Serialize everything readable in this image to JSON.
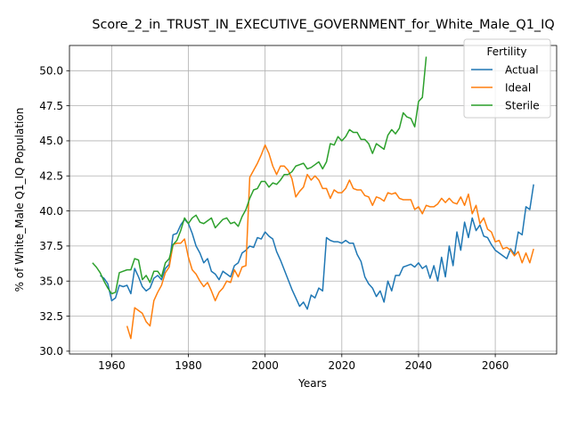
{
  "chart_data": {
    "type": "line",
    "title": "Score_2_in_TRUST_IN_EXECUTIVE_GOVERNMENT_for_White_Male_Q1_IQ",
    "xlabel": "Years",
    "ylabel": "% of White_Male Q1_IQ Population",
    "xlim": [
      1949,
      2076
    ],
    "ylim": [
      29.8,
      51.8
    ],
    "xticks": [
      1960,
      1980,
      2000,
      2020,
      2040,
      2060
    ],
    "yticks": [
      30.0,
      32.5,
      35.0,
      37.5,
      40.0,
      42.5,
      45.0,
      47.5,
      50.0
    ],
    "xtick_labels": [
      "1960",
      "1980",
      "2000",
      "2020",
      "2040",
      "2060"
    ],
    "ytick_labels": [
      "30.0",
      "32.5",
      "35.0",
      "37.5",
      "40.0",
      "42.5",
      "45.0",
      "47.5",
      "50.0"
    ],
    "grid": true,
    "legend": {
      "title": "Fertility",
      "placement": "top-right"
    },
    "series": [
      {
        "name": "Actual",
        "color": "#1f77b4",
        "points": [
          [
            1957,
            35.4
          ],
          [
            1958,
            35.2
          ],
          [
            1959,
            34.8
          ],
          [
            1960,
            33.6
          ],
          [
            1961,
            33.8
          ],
          [
            1962,
            34.7
          ],
          [
            1963,
            34.6
          ],
          [
            1964,
            34.7
          ],
          [
            1965,
            34.1
          ],
          [
            1966,
            35.9
          ],
          [
            1967,
            35.3
          ],
          [
            1968,
            34.6
          ],
          [
            1969,
            34.3
          ],
          [
            1970,
            34.5
          ],
          [
            1971,
            35.2
          ],
          [
            1972,
            35.4
          ],
          [
            1973,
            35.1
          ],
          [
            1974,
            35.9
          ],
          [
            1975,
            36.2
          ],
          [
            1976,
            38.3
          ],
          [
            1977,
            38.4
          ],
          [
            1978,
            39.0
          ],
          [
            1979,
            39.4
          ],
          [
            1980,
            39.1
          ],
          [
            1981,
            38.4
          ],
          [
            1982,
            37.5
          ],
          [
            1983,
            37.0
          ],
          [
            1984,
            36.3
          ],
          [
            1985,
            36.6
          ],
          [
            1986,
            35.7
          ],
          [
            1987,
            35.5
          ],
          [
            1988,
            35.1
          ],
          [
            1989,
            35.7
          ],
          [
            1990,
            35.5
          ],
          [
            1991,
            35.3
          ],
          [
            1992,
            36.1
          ],
          [
            1993,
            36.3
          ],
          [
            1994,
            37.0
          ],
          [
            1995,
            37.2
          ],
          [
            1996,
            37.5
          ],
          [
            1997,
            37.4
          ],
          [
            1998,
            38.1
          ],
          [
            1999,
            38.0
          ],
          [
            2000,
            38.5
          ],
          [
            2001,
            38.2
          ],
          [
            2002,
            38.0
          ],
          [
            2003,
            37.1
          ],
          [
            2004,
            36.5
          ],
          [
            2005,
            35.8
          ],
          [
            2006,
            35.1
          ],
          [
            2007,
            34.4
          ],
          [
            2008,
            33.8
          ],
          [
            2009,
            33.2
          ],
          [
            2010,
            33.5
          ],
          [
            2011,
            33.0
          ],
          [
            2012,
            34.0
          ],
          [
            2013,
            33.8
          ],
          [
            2014,
            34.5
          ],
          [
            2015,
            34.3
          ],
          [
            2016,
            38.1
          ],
          [
            2017,
            37.9
          ],
          [
            2018,
            37.8
          ],
          [
            2019,
            37.8
          ],
          [
            2020,
            37.7
          ],
          [
            2021,
            37.9
          ],
          [
            2022,
            37.7
          ],
          [
            2023,
            37.7
          ],
          [
            2024,
            36.9
          ],
          [
            2025,
            36.4
          ],
          [
            2026,
            35.3
          ],
          [
            2027,
            34.8
          ],
          [
            2028,
            34.5
          ],
          [
            2029,
            33.9
          ],
          [
            2030,
            34.3
          ],
          [
            2031,
            33.5
          ],
          [
            2032,
            35.0
          ],
          [
            2033,
            34.3
          ],
          [
            2034,
            35.4
          ],
          [
            2035,
            35.4
          ],
          [
            2036,
            36.0
          ],
          [
            2037,
            36.1
          ],
          [
            2038,
            36.2
          ],
          [
            2039,
            36.0
          ],
          [
            2040,
            36.3
          ],
          [
            2041,
            35.9
          ],
          [
            2042,
            36.1
          ],
          [
            2043,
            35.2
          ],
          [
            2044,
            36.1
          ],
          [
            2045,
            35.0
          ],
          [
            2046,
            36.7
          ],
          [
            2047,
            35.3
          ],
          [
            2048,
            37.5
          ],
          [
            2049,
            36.1
          ],
          [
            2050,
            38.5
          ],
          [
            2051,
            37.2
          ],
          [
            2052,
            39.2
          ],
          [
            2053,
            38.1
          ],
          [
            2054,
            39.5
          ],
          [
            2055,
            38.6
          ],
          [
            2056,
            39.0
          ],
          [
            2057,
            38.2
          ],
          [
            2058,
            38.1
          ],
          [
            2059,
            37.6
          ],
          [
            2060,
            37.2
          ],
          [
            2061,
            37.0
          ],
          [
            2062,
            36.8
          ],
          [
            2063,
            36.6
          ],
          [
            2064,
            37.3
          ],
          [
            2065,
            36.9
          ],
          [
            2066,
            38.5
          ],
          [
            2067,
            38.3
          ],
          [
            2068,
            40.3
          ],
          [
            2069,
            40.1
          ],
          [
            2070,
            41.9
          ]
        ]
      },
      {
        "name": "Ideal",
        "color": "#ff7f0e",
        "points": [
          [
            1964,
            31.8
          ],
          [
            1965,
            30.9
          ],
          [
            1966,
            33.1
          ],
          [
            1967,
            32.9
          ],
          [
            1968,
            32.7
          ],
          [
            1969,
            32.1
          ],
          [
            1970,
            31.8
          ],
          [
            1971,
            33.6
          ],
          [
            1972,
            34.2
          ],
          [
            1973,
            34.7
          ],
          [
            1974,
            35.6
          ],
          [
            1975,
            36.0
          ],
          [
            1976,
            37.6
          ],
          [
            1977,
            37.7
          ],
          [
            1978,
            37.7
          ],
          [
            1979,
            38.0
          ],
          [
            1980,
            36.7
          ],
          [
            1981,
            35.8
          ],
          [
            1982,
            35.5
          ],
          [
            1983,
            35.0
          ],
          [
            1984,
            34.6
          ],
          [
            1985,
            34.9
          ],
          [
            1986,
            34.3
          ],
          [
            1987,
            33.6
          ],
          [
            1988,
            34.2
          ],
          [
            1989,
            34.5
          ],
          [
            1990,
            35.0
          ],
          [
            1991,
            34.9
          ],
          [
            1992,
            35.8
          ],
          [
            1993,
            35.3
          ],
          [
            1994,
            36.0
          ],
          [
            1995,
            36.1
          ],
          [
            1996,
            42.4
          ],
          [
            1997,
            42.9
          ],
          [
            1998,
            43.4
          ],
          [
            1999,
            44.0
          ],
          [
            2000,
            44.7
          ],
          [
            2001,
            44.1
          ],
          [
            2002,
            43.2
          ],
          [
            2003,
            42.6
          ],
          [
            2004,
            43.2
          ],
          [
            2005,
            43.2
          ],
          [
            2006,
            42.9
          ],
          [
            2007,
            42.3
          ],
          [
            2008,
            41.0
          ],
          [
            2009,
            41.4
          ],
          [
            2010,
            41.7
          ],
          [
            2011,
            42.6
          ],
          [
            2012,
            42.2
          ],
          [
            2013,
            42.5
          ],
          [
            2014,
            42.2
          ],
          [
            2015,
            41.6
          ],
          [
            2016,
            41.6
          ],
          [
            2017,
            40.9
          ],
          [
            2018,
            41.5
          ],
          [
            2019,
            41.3
          ],
          [
            2020,
            41.3
          ],
          [
            2021,
            41.6
          ],
          [
            2022,
            42.2
          ],
          [
            2023,
            41.6
          ],
          [
            2024,
            41.5
          ],
          [
            2025,
            41.5
          ],
          [
            2026,
            41.1
          ],
          [
            2027,
            41.0
          ],
          [
            2028,
            40.4
          ],
          [
            2029,
            41.0
          ],
          [
            2030,
            40.9
          ],
          [
            2031,
            40.7
          ],
          [
            2032,
            41.3
          ],
          [
            2033,
            41.2
          ],
          [
            2034,
            41.3
          ],
          [
            2035,
            40.9
          ],
          [
            2036,
            40.8
          ],
          [
            2037,
            40.8
          ],
          [
            2038,
            40.8
          ],
          [
            2039,
            40.1
          ],
          [
            2040,
            40.3
          ],
          [
            2041,
            39.8
          ],
          [
            2042,
            40.4
          ],
          [
            2043,
            40.3
          ],
          [
            2044,
            40.3
          ],
          [
            2045,
            40.5
          ],
          [
            2046,
            40.9
          ],
          [
            2047,
            40.6
          ],
          [
            2048,
            40.9
          ],
          [
            2049,
            40.6
          ],
          [
            2050,
            40.5
          ],
          [
            2051,
            41.0
          ],
          [
            2052,
            40.4
          ],
          [
            2053,
            41.2
          ],
          [
            2054,
            39.8
          ],
          [
            2055,
            40.4
          ],
          [
            2056,
            39.1
          ],
          [
            2057,
            39.5
          ],
          [
            2058,
            38.7
          ],
          [
            2059,
            38.5
          ],
          [
            2060,
            37.8
          ],
          [
            2061,
            37.9
          ],
          [
            2062,
            37.3
          ],
          [
            2063,
            37.4
          ],
          [
            2064,
            37.2
          ],
          [
            2065,
            36.8
          ],
          [
            2066,
            37.1
          ],
          [
            2067,
            36.3
          ],
          [
            2068,
            37.0
          ],
          [
            2069,
            36.3
          ],
          [
            2070,
            37.3
          ]
        ]
      },
      {
        "name": "Sterile",
        "color": "#2ca02c",
        "points": [
          [
            1955,
            36.3
          ],
          [
            1956,
            36.0
          ],
          [
            1957,
            35.6
          ],
          [
            1958,
            35.0
          ],
          [
            1959,
            34.5
          ],
          [
            1960,
            34.1
          ],
          [
            1961,
            34.2
          ],
          [
            1962,
            35.6
          ],
          [
            1963,
            35.7
          ],
          [
            1964,
            35.8
          ],
          [
            1965,
            35.8
          ],
          [
            1966,
            36.6
          ],
          [
            1967,
            36.5
          ],
          [
            1968,
            35.1
          ],
          [
            1969,
            35.4
          ],
          [
            1970,
            34.9
          ],
          [
            1971,
            35.7
          ],
          [
            1972,
            35.7
          ],
          [
            1973,
            35.3
          ],
          [
            1974,
            36.3
          ],
          [
            1975,
            36.6
          ],
          [
            1976,
            37.6
          ],
          [
            1977,
            37.9
          ],
          [
            1978,
            38.6
          ],
          [
            1979,
            39.5
          ],
          [
            1980,
            39.1
          ],
          [
            1981,
            39.5
          ],
          [
            1982,
            39.7
          ],
          [
            1983,
            39.2
          ],
          [
            1984,
            39.1
          ],
          [
            1985,
            39.3
          ],
          [
            1986,
            39.5
          ],
          [
            1987,
            38.8
          ],
          [
            1988,
            39.1
          ],
          [
            1989,
            39.4
          ],
          [
            1990,
            39.5
          ],
          [
            1991,
            39.1
          ],
          [
            1992,
            39.2
          ],
          [
            1993,
            38.9
          ],
          [
            1994,
            39.6
          ],
          [
            1995,
            40.1
          ],
          [
            1996,
            40.9
          ],
          [
            1997,
            41.5
          ],
          [
            1998,
            41.6
          ],
          [
            1999,
            42.1
          ],
          [
            2000,
            42.1
          ],
          [
            2001,
            41.7
          ],
          [
            2002,
            42.0
          ],
          [
            2003,
            41.9
          ],
          [
            2004,
            42.2
          ],
          [
            2005,
            42.6
          ],
          [
            2006,
            42.6
          ],
          [
            2007,
            42.8
          ],
          [
            2008,
            43.2
          ],
          [
            2009,
            43.3
          ],
          [
            2010,
            43.4
          ],
          [
            2011,
            43.0
          ],
          [
            2012,
            43.1
          ],
          [
            2013,
            43.3
          ],
          [
            2014,
            43.5
          ],
          [
            2015,
            43.0
          ],
          [
            2016,
            43.5
          ],
          [
            2017,
            44.8
          ],
          [
            2018,
            44.7
          ],
          [
            2019,
            45.3
          ],
          [
            2020,
            45.0
          ],
          [
            2021,
            45.3
          ],
          [
            2022,
            45.8
          ],
          [
            2023,
            45.6
          ],
          [
            2024,
            45.6
          ],
          [
            2025,
            45.1
          ],
          [
            2026,
            45.1
          ],
          [
            2027,
            44.8
          ],
          [
            2028,
            44.1
          ],
          [
            2029,
            44.8
          ],
          [
            2030,
            44.6
          ],
          [
            2031,
            44.4
          ],
          [
            2032,
            45.4
          ],
          [
            2033,
            45.8
          ],
          [
            2034,
            45.5
          ],
          [
            2035,
            45.9
          ],
          [
            2036,
            47.0
          ],
          [
            2037,
            46.7
          ],
          [
            2038,
            46.6
          ],
          [
            2039,
            46.0
          ],
          [
            2040,
            47.8
          ],
          [
            2041,
            48.1
          ],
          [
            2042,
            51.0
          ]
        ]
      }
    ]
  }
}
